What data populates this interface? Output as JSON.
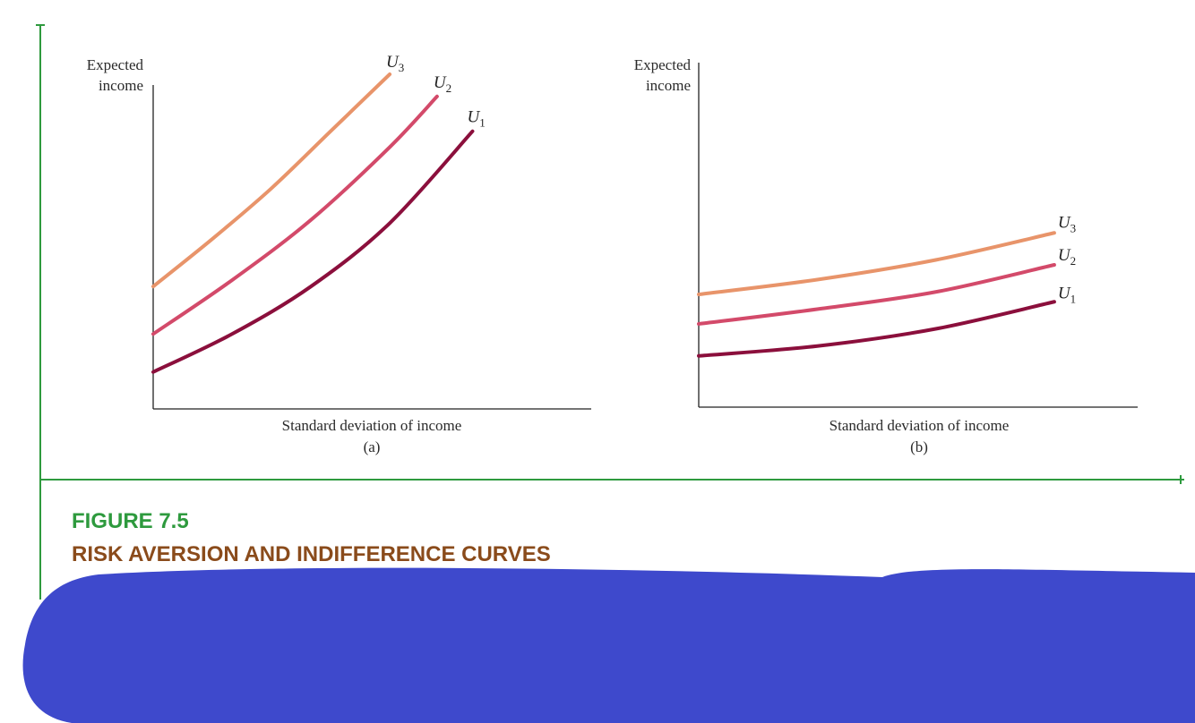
{
  "figure": {
    "number": "FIGURE 7.5",
    "title": "RISK AVERSION AND INDIFFERENCE CURVES",
    "number_color": "#2e9a3e",
    "title_color": "#8a4b1b",
    "frame_color": "#2e9a3e",
    "redaction_color": "#3e49cc"
  },
  "chart_data": [
    {
      "type": "line",
      "panel_label": "(a)",
      "ylabel": "Expected income",
      "xlabel": "Standard deviation of income",
      "xlim": [
        0,
        10
      ],
      "ylim": [
        0,
        10
      ],
      "grid": false,
      "series": [
        {
          "name": "U3",
          "color": "#e8946a",
          "x": [
            0,
            1.5,
            3,
            4.5,
            6
          ],
          "y": [
            3.3,
            4.8,
            6.4,
            8.2,
            10.0
          ]
        },
        {
          "name": "U2",
          "color": "#d34a6a",
          "x": [
            0,
            2,
            4,
            6,
            7.2
          ],
          "y": [
            1.8,
            3.5,
            5.4,
            7.7,
            9.3
          ]
        },
        {
          "name": "U1",
          "color": "#8b0f3c",
          "x": [
            0,
            2,
            4,
            6,
            8.1
          ],
          "y": [
            0.6,
            1.8,
            3.3,
            5.3,
            8.2
          ]
        }
      ]
    },
    {
      "type": "line",
      "panel_label": "(b)",
      "ylabel": "Expected income",
      "xlabel": "Standard deviation of income",
      "xlim": [
        0,
        10
      ],
      "ylim": [
        0,
        10
      ],
      "grid": false,
      "series": [
        {
          "name": "U3",
          "color": "#e8946a",
          "x": [
            0,
            3,
            6,
            9
          ],
          "y": [
            3.6,
            4.2,
            5.0,
            6.1
          ]
        },
        {
          "name": "U2",
          "color": "#d34a6a",
          "x": [
            0,
            3,
            6,
            9
          ],
          "y": [
            2.4,
            3.0,
            3.7,
            4.8
          ]
        },
        {
          "name": "U1",
          "color": "#8b0f3c",
          "x": [
            0,
            3,
            6,
            9
          ],
          "y": [
            1.1,
            1.5,
            2.2,
            3.3
          ]
        }
      ]
    }
  ]
}
